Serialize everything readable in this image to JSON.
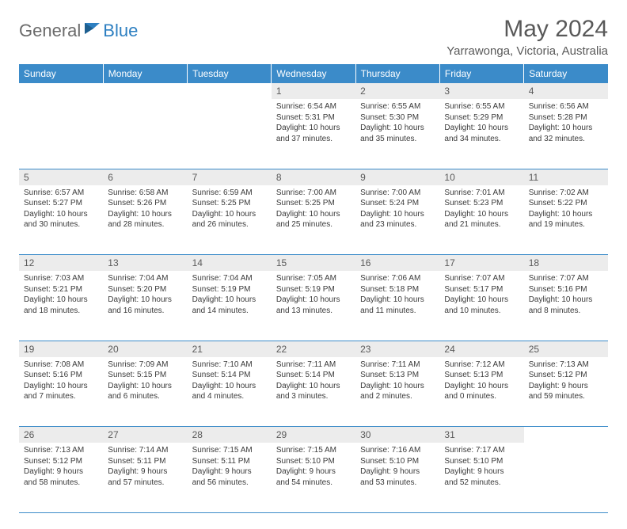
{
  "logo": {
    "text1": "General",
    "text2": "Blue"
  },
  "title": "May 2024",
  "location": "Yarrawonga, Victoria, Australia",
  "colors": {
    "header_bg": "#3b8bc9",
    "header_text": "#ffffff",
    "daynum_bg": "#ececec",
    "text": "#3a3a3a",
    "title_text": "#595959",
    "logo_gray": "#6b6b6b",
    "logo_blue": "#2d7fc1",
    "border": "#3b8bc9"
  },
  "headers": [
    "Sunday",
    "Monday",
    "Tuesday",
    "Wednesday",
    "Thursday",
    "Friday",
    "Saturday"
  ],
  "weeks": [
    {
      "nums": [
        "",
        "",
        "",
        "1",
        "2",
        "3",
        "4"
      ],
      "cells": [
        "",
        "",
        "",
        "Sunrise: 6:54 AM\nSunset: 5:31 PM\nDaylight: 10 hours and 37 minutes.",
        "Sunrise: 6:55 AM\nSunset: 5:30 PM\nDaylight: 10 hours and 35 minutes.",
        "Sunrise: 6:55 AM\nSunset: 5:29 PM\nDaylight: 10 hours and 34 minutes.",
        "Sunrise: 6:56 AM\nSunset: 5:28 PM\nDaylight: 10 hours and 32 minutes."
      ]
    },
    {
      "nums": [
        "5",
        "6",
        "7",
        "8",
        "9",
        "10",
        "11"
      ],
      "cells": [
        "Sunrise: 6:57 AM\nSunset: 5:27 PM\nDaylight: 10 hours and 30 minutes.",
        "Sunrise: 6:58 AM\nSunset: 5:26 PM\nDaylight: 10 hours and 28 minutes.",
        "Sunrise: 6:59 AM\nSunset: 5:25 PM\nDaylight: 10 hours and 26 minutes.",
        "Sunrise: 7:00 AM\nSunset: 5:25 PM\nDaylight: 10 hours and 25 minutes.",
        "Sunrise: 7:00 AM\nSunset: 5:24 PM\nDaylight: 10 hours and 23 minutes.",
        "Sunrise: 7:01 AM\nSunset: 5:23 PM\nDaylight: 10 hours and 21 minutes.",
        "Sunrise: 7:02 AM\nSunset: 5:22 PM\nDaylight: 10 hours and 19 minutes."
      ]
    },
    {
      "nums": [
        "12",
        "13",
        "14",
        "15",
        "16",
        "17",
        "18"
      ],
      "cells": [
        "Sunrise: 7:03 AM\nSunset: 5:21 PM\nDaylight: 10 hours and 18 minutes.",
        "Sunrise: 7:04 AM\nSunset: 5:20 PM\nDaylight: 10 hours and 16 minutes.",
        "Sunrise: 7:04 AM\nSunset: 5:19 PM\nDaylight: 10 hours and 14 minutes.",
        "Sunrise: 7:05 AM\nSunset: 5:19 PM\nDaylight: 10 hours and 13 minutes.",
        "Sunrise: 7:06 AM\nSunset: 5:18 PM\nDaylight: 10 hours and 11 minutes.",
        "Sunrise: 7:07 AM\nSunset: 5:17 PM\nDaylight: 10 hours and 10 minutes.",
        "Sunrise: 7:07 AM\nSunset: 5:16 PM\nDaylight: 10 hours and 8 minutes."
      ]
    },
    {
      "nums": [
        "19",
        "20",
        "21",
        "22",
        "23",
        "24",
        "25"
      ],
      "cells": [
        "Sunrise: 7:08 AM\nSunset: 5:16 PM\nDaylight: 10 hours and 7 minutes.",
        "Sunrise: 7:09 AM\nSunset: 5:15 PM\nDaylight: 10 hours and 6 minutes.",
        "Sunrise: 7:10 AM\nSunset: 5:14 PM\nDaylight: 10 hours and 4 minutes.",
        "Sunrise: 7:11 AM\nSunset: 5:14 PM\nDaylight: 10 hours and 3 minutes.",
        "Sunrise: 7:11 AM\nSunset: 5:13 PM\nDaylight: 10 hours and 2 minutes.",
        "Sunrise: 7:12 AM\nSunset: 5:13 PM\nDaylight: 10 hours and 0 minutes.",
        "Sunrise: 7:13 AM\nSunset: 5:12 PM\nDaylight: 9 hours and 59 minutes."
      ]
    },
    {
      "nums": [
        "26",
        "27",
        "28",
        "29",
        "30",
        "31",
        ""
      ],
      "cells": [
        "Sunrise: 7:13 AM\nSunset: 5:12 PM\nDaylight: 9 hours and 58 minutes.",
        "Sunrise: 7:14 AM\nSunset: 5:11 PM\nDaylight: 9 hours and 57 minutes.",
        "Sunrise: 7:15 AM\nSunset: 5:11 PM\nDaylight: 9 hours and 56 minutes.",
        "Sunrise: 7:15 AM\nSunset: 5:10 PM\nDaylight: 9 hours and 54 minutes.",
        "Sunrise: 7:16 AM\nSunset: 5:10 PM\nDaylight: 9 hours and 53 minutes.",
        "Sunrise: 7:17 AM\nSunset: 5:10 PM\nDaylight: 9 hours and 52 minutes.",
        ""
      ]
    }
  ]
}
